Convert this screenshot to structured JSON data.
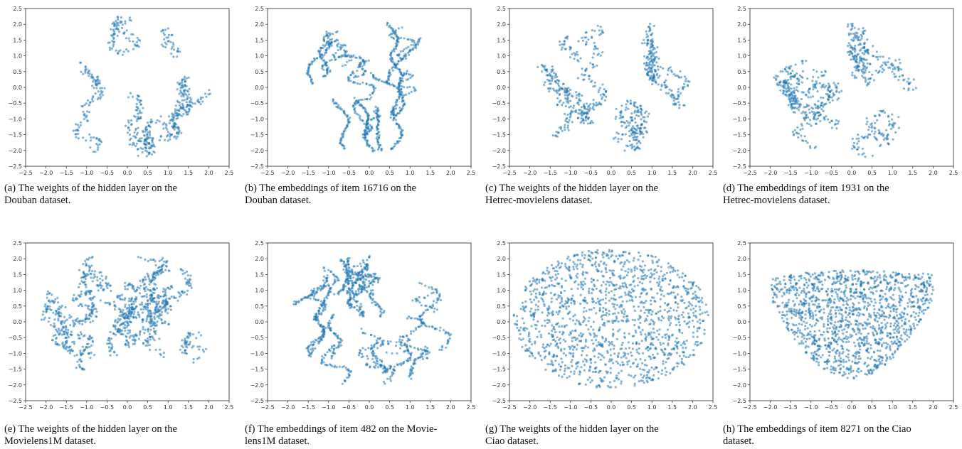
{
  "accent": "#1f77b4",
  "figure": {
    "panels": [
      {
        "caption_line1": "(a)  The weights of the hidden layer on the",
        "caption_line2": "Douban dataset."
      },
      {
        "caption_line1": "(b)  The embeddings of item 16716 on the",
        "caption_line2": "Douban dataset."
      },
      {
        "caption_line1": "(c)  The weights of the hidden layer on the",
        "caption_line2": "Hetrec-movielens dataset."
      },
      {
        "caption_line1": "(d)  The embeddings of item 1931 on the",
        "caption_line2": "Hetrec-movielens dataset."
      },
      {
        "caption_line1": "(e)  The weights of the hidden layer on the",
        "caption_line2": "Movielens1M dataset."
      },
      {
        "caption_line1": "(f)  The embeddings of item 482 on the Movie-",
        "caption_line2": "lens1M dataset."
      },
      {
        "caption_line1": "(g)  The weights of the hidden layer on the",
        "caption_line2": "Ciao dataset."
      },
      {
        "caption_line1": "(h)  The embeddings of item 8271 on the Ciao",
        "caption_line2": "dataset."
      }
    ]
  },
  "chart_data": [
    {
      "type": "scatter",
      "title": "",
      "xlim": [
        -2.5,
        2.5
      ],
      "ylim": [
        -2.5,
        2.5
      ],
      "x_ticks": [
        "−2.5",
        "−2.0",
        "−1.5",
        "−1.0",
        "−0.5",
        "0.0",
        "0.5",
        "1.0",
        "1.5",
        "2.0",
        "2.5"
      ],
      "y_ticks": [
        "−2.5",
        "−2.0",
        "−1.5",
        "−1.0",
        "−0.5",
        "0.0",
        "0.5",
        "1.0",
        "1.5",
        "2.0",
        "2.5"
      ],
      "color": "#1f77b4",
      "pattern": "curves",
      "extent": {
        "x": [
          -2.0,
          2.0
        ],
        "y": [
          -2.2,
          2.2
        ]
      },
      "curve_count": 14,
      "spread": 0.06
    },
    {
      "type": "scatter",
      "title": "",
      "xlim": [
        -2.5,
        2.5
      ],
      "ylim": [
        -2.5,
        2.5
      ],
      "x_ticks": [
        "−2.5",
        "−2.0",
        "−1.5",
        "−1.0",
        "−0.5",
        "0.0",
        "0.5",
        "1.0",
        "1.5",
        "2.0",
        "2.5"
      ],
      "y_ticks": [
        "−2.5",
        "−2.0",
        "−1.5",
        "−1.0",
        "−0.5",
        "0.0",
        "0.5",
        "1.0",
        "1.5",
        "2.0",
        "2.5"
      ],
      "color": "#1f77b4",
      "pattern": "curves",
      "extent": {
        "x": [
          -2.0,
          2.0
        ],
        "y": [
          -2.0,
          2.05
        ]
      },
      "curve_count": 18,
      "spread": 0.02
    },
    {
      "type": "scatter",
      "title": "",
      "xlim": [
        -2.5,
        2.5
      ],
      "ylim": [
        -2.5,
        2.5
      ],
      "x_ticks": [
        "−2.5",
        "−2.0",
        "−1.5",
        "−1.0",
        "−0.5",
        "0.0",
        "0.5",
        "1.0",
        "1.5",
        "2.0",
        "2.5"
      ],
      "y_ticks": [
        "−2.5",
        "−2.0",
        "−1.5",
        "−1.0",
        "−0.5",
        "0.0",
        "0.5",
        "1.0",
        "1.5",
        "2.0",
        "2.5"
      ],
      "color": "#1f77b4",
      "pattern": "curves",
      "extent": {
        "x": [
          -2.0,
          1.9
        ],
        "y": [
          -2.1,
          2.3
        ]
      },
      "curve_count": 15,
      "spread": 0.06
    },
    {
      "type": "scatter",
      "title": "",
      "xlim": [
        -2.5,
        2.5
      ],
      "ylim": [
        -2.5,
        2.5
      ],
      "x_ticks": [
        "−2.5",
        "−2.0",
        "−1.5",
        "−1.0",
        "−0.5",
        "0.0",
        "0.5",
        "1.0",
        "1.5",
        "2.0",
        "2.5"
      ],
      "y_ticks": [
        "−2.5",
        "−2.0",
        "−1.5",
        "−1.0",
        "−0.5",
        "0.0",
        "0.5",
        "1.0",
        "1.5",
        "2.0",
        "2.5"
      ],
      "color": "#1f77b4",
      "pattern": "curves",
      "extent": {
        "x": [
          -1.9,
          1.9
        ],
        "y": [
          -2.2,
          2.0
        ]
      },
      "curve_count": 16,
      "spread": 0.07
    },
    {
      "type": "scatter",
      "title": "",
      "xlim": [
        -2.5,
        2.5
      ],
      "ylim": [
        -2.5,
        2.5
      ],
      "x_ticks": [
        "−2.5",
        "−2.0",
        "−1.5",
        "−1.0",
        "−0.5",
        "0.0",
        "0.5",
        "1.0",
        "1.5",
        "2.0",
        "2.5"
      ],
      "y_ticks": [
        "−2.5",
        "−2.0",
        "−1.5",
        "−1.0",
        "−0.5",
        "0.0",
        "0.5",
        "1.0",
        "1.5",
        "2.0",
        "2.5"
      ],
      "color": "#1f77b4",
      "pattern": "curves",
      "extent": {
        "x": [
          -2.1,
          2.1
        ],
        "y": [
          -2.1,
          2.2
        ]
      },
      "curve_count": 24,
      "spread": 0.05
    },
    {
      "type": "scatter",
      "title": "",
      "xlim": [
        -2.5,
        2.5
      ],
      "ylim": [
        -2.5,
        2.5
      ],
      "x_ticks": [
        "−2.5",
        "−2.0",
        "−1.5",
        "−1.0",
        "−0.5",
        "0.0",
        "0.5",
        "1.0",
        "1.5",
        "2.0",
        "2.5"
      ],
      "y_ticks": [
        "−2.5",
        "−2.0",
        "−1.5",
        "−1.0",
        "−0.5",
        "0.0",
        "0.5",
        "1.0",
        "1.5",
        "2.0",
        "2.5"
      ],
      "color": "#1f77b4",
      "pattern": "curves",
      "extent": {
        "x": [
          -2.0,
          2.0
        ],
        "y": [
          -2.05,
          2.05
        ]
      },
      "curve_count": 26,
      "spread": 0.025
    },
    {
      "type": "scatter",
      "title": "",
      "xlim": [
        -2.5,
        2.5
      ],
      "ylim": [
        -2.5,
        2.5
      ],
      "x_ticks": [
        "−2.5",
        "−2.0",
        "−1.5",
        "−1.0",
        "−0.5",
        "0.0",
        "0.5",
        "1.0",
        "1.5",
        "2.0",
        "2.5"
      ],
      "y_ticks": [
        "−2.5",
        "−2.0",
        "−1.5",
        "−1.0",
        "−0.5",
        "0.0",
        "0.5",
        "1.0",
        "1.5",
        "2.0",
        "2.5"
      ],
      "color": "#1f77b4",
      "pattern": "disk",
      "extent": {
        "x": [
          -2.4,
          2.4
        ],
        "y": [
          -2.1,
          2.3
        ]
      },
      "point_count": 1400
    },
    {
      "type": "scatter",
      "title": "",
      "xlim": [
        -2.5,
        2.5
      ],
      "ylim": [
        -2.5,
        2.5
      ],
      "x_ticks": [
        "−2.5",
        "−2.0",
        "−1.5",
        "−1.0",
        "−0.5",
        "0.0",
        "0.5",
        "1.0",
        "1.5",
        "2.0",
        "2.5"
      ],
      "y_ticks": [
        "−2.5",
        "−2.0",
        "−1.5",
        "−1.0",
        "−0.5",
        "0.0",
        "0.5",
        "1.0",
        "1.5",
        "2.0",
        "2.5"
      ],
      "color": "#1f77b4",
      "pattern": "bowl",
      "extent": {
        "x": [
          -2.0,
          2.0
        ],
        "y": [
          -1.9,
          2.2
        ]
      },
      "point_count": 1400
    }
  ]
}
